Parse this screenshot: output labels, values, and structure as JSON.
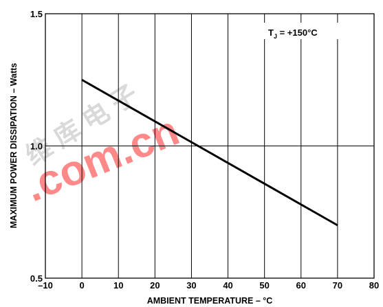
{
  "chart_data": {
    "type": "line",
    "xlabel": "AMBIENT TEMPERATURE – °C",
    "ylabel": "MAXIMUM POWER DISSIPATION – Watts",
    "xlim": [
      -10,
      80
    ],
    "ylim": [
      0.5,
      1.5
    ],
    "x_ticks": [
      "–10",
      "0",
      "10",
      "20",
      "30",
      "40",
      "50",
      "60",
      "70",
      "80"
    ],
    "y_ticks": [
      "0.5",
      "1.0",
      "1.5"
    ],
    "grid": true,
    "annotation": {
      "text_main": "T",
      "text_sub": "J",
      "text_rest": " = +150°C"
    },
    "series": [
      {
        "x": [
          0,
          70
        ],
        "y": [
          1.25,
          0.7
        ]
      }
    ],
    "watermark": {
      "text": ".com.cn",
      "glyphs": "维 库 电 子",
      "color": "#ff0000"
    }
  }
}
